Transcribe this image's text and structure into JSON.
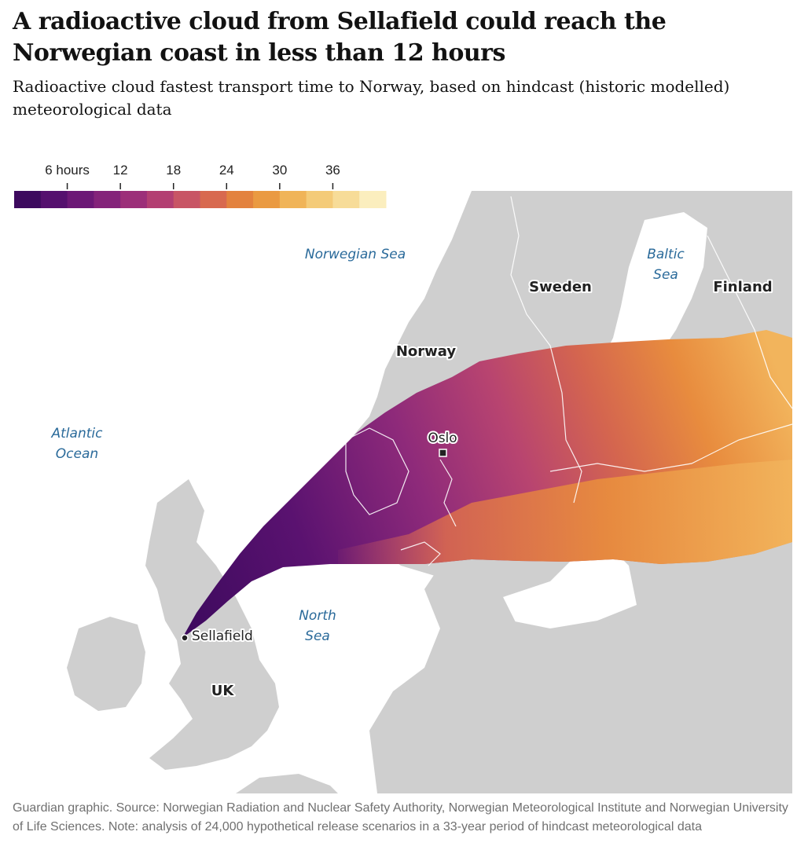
{
  "header": {
    "title": "A radioactive cloud from Sellafield could reach the Norwegian coast in less than 12 hours",
    "subtitle": "Radioactive cloud fastest transport time to Norway, based on hindcast (historic modelled) meteorological data"
  },
  "legend": {
    "tick_labels": [
      "6 hours",
      "12",
      "18",
      "24",
      "30",
      "36"
    ],
    "colors": [
      "#3d0a5e",
      "#55106e",
      "#6c1876",
      "#84237a",
      "#9c2f79",
      "#b33f72",
      "#c85565",
      "#d8694f",
      "#e3823f",
      "#ea9a42",
      "#f0b458",
      "#f4cb78",
      "#f7dc98",
      "#fbeebe"
    ]
  },
  "map": {
    "seas": [
      {
        "id": "norwegian-sea",
        "text": "Norwegian Sea"
      },
      {
        "id": "baltic-sea-1",
        "text": "Baltic"
      },
      {
        "id": "baltic-sea-2",
        "text": "Sea"
      },
      {
        "id": "atlantic-1",
        "text": "Atlantic"
      },
      {
        "id": "atlantic-2",
        "text": "Ocean"
      },
      {
        "id": "north-sea-1",
        "text": "North"
      },
      {
        "id": "north-sea-2",
        "text": "Sea"
      }
    ],
    "countries": {
      "sweden": "Sweden",
      "finland": "Finland",
      "norway": "Norway",
      "uk": "UK"
    },
    "places": {
      "oslo": "Oslo",
      "sellafield": "Sellafield"
    },
    "colors": {
      "land": "#cfcfcf",
      "water": "#ffffff",
      "border": "#ffffff"
    }
  },
  "footer": {
    "source": "Guardian graphic. Source: Norwegian Radiation and Nuclear Safety Authority, Norwegian Meteorological Institute and Norwegian University of Life Sciences. Note: analysis of 24,000 hypothetical release scenarios in a 33-year period of hindcast meteorological data"
  }
}
